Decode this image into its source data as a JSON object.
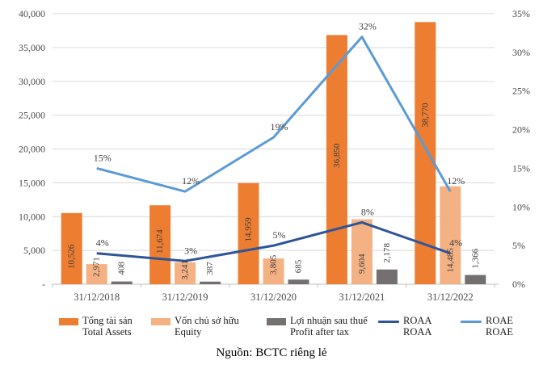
{
  "caption": "Nguồn: BCTC riêng lẻ",
  "chart_data": {
    "type": "combo-bar-line",
    "title": "",
    "categories": [
      "31/12/2018",
      "31/12/2019",
      "31/12/2020",
      "31/12/2021",
      "31/12/2022"
    ],
    "bar_series": [
      {
        "key": "total-assets",
        "label_vi": "Tổng tài sản",
        "label_en": "Total Assets",
        "color": "#ED7D31",
        "values": [
          10526,
          11674,
          14959,
          36850,
          38770
        ],
        "value_labels": [
          "10,526",
          "11,674",
          "14,959",
          "36,850",
          "38,770"
        ]
      },
      {
        "key": "equity",
        "label_vi": "Vốn chủ sở hữu",
        "label_en": "Equity",
        "color": "#F4B183",
        "values": [
          2971,
          3241,
          3805,
          9604,
          14485
        ],
        "value_labels": [
          "2,971",
          "3,241",
          "3,805",
          "9,604",
          "14,485"
        ]
      },
      {
        "key": "profit-after-tax",
        "label_vi": "Lợi nhuận sau thuế",
        "label_en": "Profit after tax",
        "color": "#757070",
        "values": [
          408,
          387,
          685,
          2178,
          1366
        ],
        "value_labels": [
          "408",
          "387",
          "685",
          "2,178",
          "1,366"
        ]
      }
    ],
    "line_series": [
      {
        "key": "roaa",
        "label_vi": "ROAA",
        "label_en": "ROAA",
        "color": "#2E5597",
        "values": [
          4,
          3,
          5,
          8,
          4
        ],
        "value_labels": [
          "4%",
          "3%",
          "5%",
          "8%",
          "4%"
        ]
      },
      {
        "key": "roae",
        "label_vi": "ROAE",
        "label_en": "ROAE",
        "color": "#5B9BD5",
        "values": [
          15,
          12,
          19,
          32,
          12
        ],
        "value_labels": [
          "15%",
          "12%",
          "19%",
          "32%",
          "12%"
        ]
      }
    ],
    "left_axis": {
      "min": 0,
      "max": 40000,
      "step": 5000,
      "tick_labels": [
        "-",
        "5,000",
        "10,000",
        "15,000",
        "20,000",
        "25,000",
        "30,000",
        "35,000",
        "40,000"
      ]
    },
    "right_axis": {
      "min": 0,
      "max": 35,
      "step": 5,
      "tick_labels": [
        "0%",
        "5%",
        "10%",
        "15%",
        "20%",
        "25%",
        "30%",
        "35%"
      ]
    },
    "grid": true,
    "legend_position": "bottom"
  }
}
